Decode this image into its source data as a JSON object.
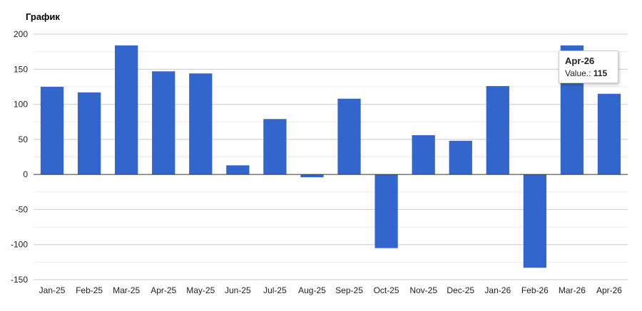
{
  "chart_data": {
    "type": "bar",
    "title": "График",
    "categories": [
      "Jan-25",
      "Feb-25",
      "Mar-25",
      "Apr-25",
      "May-25",
      "Jun-25",
      "Jul-25",
      "Aug-25",
      "Sep-25",
      "Oct-25",
      "Nov-25",
      "Dec-25",
      "Jan-26",
      "Feb-26",
      "Mar-26",
      "Apr-26"
    ],
    "series": [
      {
        "values": [
          125,
          117,
          184,
          147,
          144,
          13,
          79,
          -4,
          108,
          -105,
          56,
          48,
          126,
          -133,
          184,
          115
        ]
      }
    ],
    "ylim": [
      -150,
      200
    ],
    "yticks": [
      200,
      150,
      100,
      50,
      0,
      -50,
      -100,
      -150
    ],
    "grid": true,
    "legend": "none",
    "colors": {
      "bar": "#3366cc",
      "grid": "#cccccc",
      "minor_grid": "#ebebeb",
      "axis": "#333333"
    }
  },
  "tooltip": {
    "category": "Apr-26",
    "value_label": "Value.:",
    "value": "115"
  }
}
